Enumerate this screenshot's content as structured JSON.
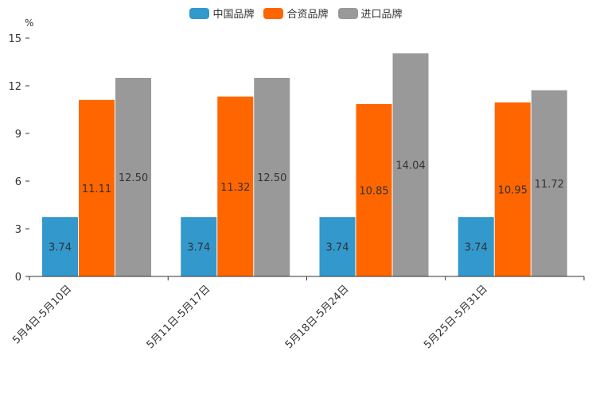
{
  "chart_data": {
    "type": "bar",
    "unit": "%",
    "categories": [
      "5月4日-5月10日",
      "5月11日-5月17日",
      "5月18日-5月24日",
      "5月25日-5月31日"
    ],
    "series": [
      {
        "name": "中国品牌",
        "color": "#3398cc",
        "values": [
          3.74,
          3.74,
          3.74,
          3.74
        ],
        "labels": [
          "3.74",
          "3.74",
          "3.74",
          "3.74"
        ]
      },
      {
        "name": "合资品牌",
        "color": "#ff6600",
        "values": [
          11.11,
          11.32,
          10.85,
          10.95
        ],
        "labels": [
          "11.11",
          "11.32",
          "10.85",
          "10.95"
        ]
      },
      {
        "name": "进口品牌",
        "color": "#999999",
        "values": [
          12.5,
          12.5,
          14.04,
          11.72
        ],
        "labels": [
          "12.50",
          "12.50",
          "14.04",
          "11.72"
        ]
      }
    ],
    "yticks": [
      "0",
      "3",
      "6",
      "9",
      "12",
      "15"
    ],
    "ylim": [
      0,
      15
    ],
    "legend_position": "top-center"
  }
}
